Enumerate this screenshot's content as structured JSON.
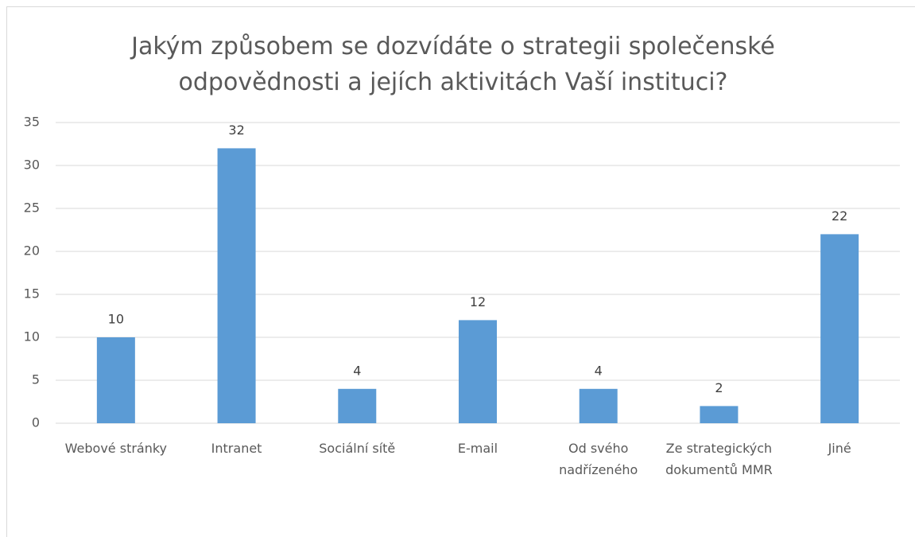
{
  "chart_data": {
    "type": "bar",
    "title": "Jakým způsobem se dozvídáte o strategii společenské odpovědnosti a jejích aktivitách Vaší instituci?",
    "categories": [
      "Webové stránky",
      "Intranet",
      "Sociální sítě",
      "E-mail",
      "Od svého nadřízeného",
      "Ze strategických dokumentů MMR",
      "Jiné"
    ],
    "values": [
      10,
      32,
      4,
      12,
      4,
      2,
      22
    ],
    "color": "#5b9bd5",
    "ylim": [
      0,
      35
    ],
    "yticks": [
      0,
      5,
      10,
      15,
      20,
      25,
      30,
      35
    ],
    "grid": true
  }
}
